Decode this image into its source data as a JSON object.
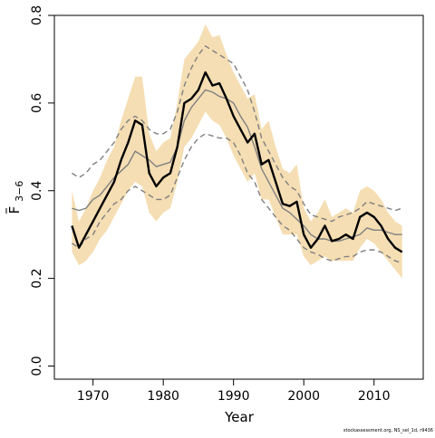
{
  "chart_data": {
    "type": "line",
    "xlabel": "Year",
    "ylabel_main": "F",
    "ylabel_sub": "3−6",
    "xlim": [
      1964.5,
      2017
    ],
    "ylim": [
      -0.03,
      0.8
    ],
    "x_ticks": [
      1970,
      1980,
      1990,
      2000,
      2010
    ],
    "y_ticks": [
      0.0,
      0.2,
      0.4,
      0.6,
      0.8
    ],
    "y_tick_labels": [
      "0.0",
      "0.2",
      "0.4",
      "0.6",
      "0.8"
    ],
    "grid": false,
    "colors": {
      "band": "#f5deb3",
      "estimate": "#000000",
      "dashed": "#808080",
      "smooth": "#808080"
    },
    "years": [
      1967,
      1968,
      1969,
      1970,
      1971,
      1972,
      1973,
      1974,
      1975,
      1976,
      1977,
      1978,
      1979,
      1980,
      1981,
      1982,
      1983,
      1984,
      1985,
      1986,
      1987,
      1988,
      1989,
      1990,
      1991,
      1992,
      1993,
      1994,
      1995,
      1996,
      1997,
      1998,
      1999,
      2000,
      2001,
      2002,
      2003,
      2004,
      2005,
      2006,
      2007,
      2008,
      2009,
      2010,
      2011,
      2012,
      2013,
      2014
    ],
    "series": [
      {
        "role": "estimate",
        "values": [
          0.32,
          0.27,
          0.3,
          0.33,
          0.36,
          0.39,
          0.42,
          0.47,
          0.51,
          0.56,
          0.55,
          0.44,
          0.41,
          0.43,
          0.44,
          0.5,
          0.6,
          0.61,
          0.63,
          0.67,
          0.64,
          0.645,
          0.61,
          0.57,
          0.54,
          0.51,
          0.53,
          0.46,
          0.47,
          0.42,
          0.37,
          0.365,
          0.375,
          0.3,
          0.27,
          0.29,
          0.32,
          0.285,
          0.29,
          0.3,
          0.29,
          0.34,
          0.35,
          0.34,
          0.32,
          0.29,
          0.27,
          0.26
        ]
      },
      {
        "role": "lower-bound",
        "values": [
          0.28,
          0.27,
          0.29,
          0.3,
          0.33,
          0.35,
          0.37,
          0.38,
          0.4,
          0.41,
          0.4,
          0.39,
          0.38,
          0.38,
          0.39,
          0.43,
          0.47,
          0.5,
          0.52,
          0.53,
          0.525,
          0.52,
          0.52,
          0.51,
          0.48,
          0.44,
          0.42,
          0.38,
          0.36,
          0.34,
          0.32,
          0.31,
          0.29,
          0.27,
          0.26,
          0.255,
          0.245,
          0.24,
          0.245,
          0.25,
          0.25,
          0.26,
          0.265,
          0.265,
          0.26,
          0.25,
          0.24,
          0.235
        ]
      },
      {
        "role": "upper-bound",
        "values": [
          0.44,
          0.43,
          0.44,
          0.46,
          0.47,
          0.49,
          0.51,
          0.54,
          0.56,
          0.57,
          0.56,
          0.54,
          0.53,
          0.53,
          0.54,
          0.58,
          0.64,
          0.68,
          0.71,
          0.73,
          0.72,
          0.71,
          0.7,
          0.69,
          0.66,
          0.63,
          0.58,
          0.52,
          0.49,
          0.46,
          0.43,
          0.41,
          0.4,
          0.37,
          0.345,
          0.34,
          0.335,
          0.33,
          0.34,
          0.345,
          0.35,
          0.36,
          0.375,
          0.37,
          0.365,
          0.36,
          0.355,
          0.36
        ]
      },
      {
        "role": "smoothed",
        "values": [
          0.36,
          0.355,
          0.36,
          0.38,
          0.39,
          0.41,
          0.43,
          0.445,
          0.46,
          0.49,
          0.48,
          0.47,
          0.455,
          0.46,
          0.465,
          0.5,
          0.56,
          0.59,
          0.61,
          0.63,
          0.625,
          0.615,
          0.61,
          0.6,
          0.57,
          0.545,
          0.5,
          0.45,
          0.42,
          0.39,
          0.36,
          0.35,
          0.335,
          0.32,
          0.3,
          0.29,
          0.29,
          0.285,
          0.285,
          0.29,
          0.295,
          0.3,
          0.315,
          0.31,
          0.31,
          0.305,
          0.3,
          0.3
        ]
      },
      {
        "role": "band-lower",
        "values": [
          0.26,
          0.23,
          0.24,
          0.26,
          0.29,
          0.31,
          0.34,
          0.37,
          0.4,
          0.42,
          0.41,
          0.35,
          0.33,
          0.35,
          0.36,
          0.42,
          0.5,
          0.52,
          0.55,
          0.58,
          0.56,
          0.55,
          0.52,
          0.48,
          0.45,
          0.42,
          0.44,
          0.38,
          0.38,
          0.34,
          0.3,
          0.3,
          0.3,
          0.25,
          0.23,
          0.24,
          0.25,
          0.24,
          0.24,
          0.24,
          0.24,
          0.27,
          0.29,
          0.28,
          0.26,
          0.24,
          0.22,
          0.2
        ]
      },
      {
        "role": "band-upper",
        "values": [
          0.4,
          0.33,
          0.36,
          0.4,
          0.43,
          0.47,
          0.5,
          0.56,
          0.61,
          0.66,
          0.66,
          0.53,
          0.49,
          0.51,
          0.52,
          0.6,
          0.7,
          0.72,
          0.74,
          0.78,
          0.75,
          0.755,
          0.71,
          0.67,
          0.64,
          0.61,
          0.62,
          0.54,
          0.56,
          0.5,
          0.45,
          0.44,
          0.46,
          0.36,
          0.33,
          0.35,
          0.38,
          0.34,
          0.35,
          0.36,
          0.35,
          0.4,
          0.41,
          0.4,
          0.38,
          0.35,
          0.33,
          0.32
        ]
      }
    ]
  },
  "footer_text": "stockassessment.org, NS_sel_1d, r9436"
}
